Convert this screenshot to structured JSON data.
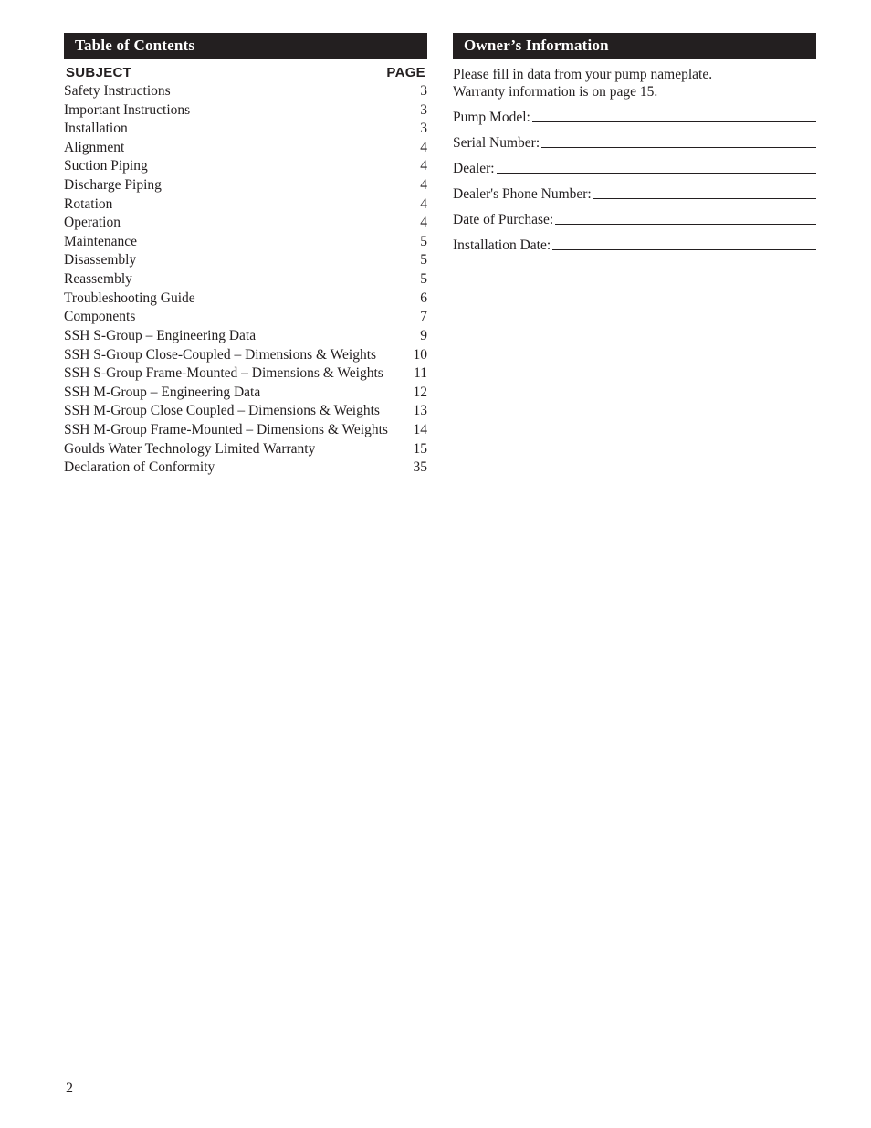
{
  "page_number": "2",
  "toc": {
    "title": "Table of Contents",
    "header_subject": "SUBJECT",
    "header_page": "PAGE",
    "entries": [
      {
        "subject": "Safety Instructions",
        "page": "3"
      },
      {
        "subject": "Important Instructions",
        "page": "3"
      },
      {
        "subject": "Installation",
        "page": "3"
      },
      {
        "subject": "Alignment",
        "page": "4"
      },
      {
        "subject": "Suction Piping",
        "page": "4"
      },
      {
        "subject": "Discharge Piping",
        "page": "4"
      },
      {
        "subject": "Rotation",
        "page": "4"
      },
      {
        "subject": "Operation",
        "page": "4"
      },
      {
        "subject": "Maintenance",
        "page": "5"
      },
      {
        "subject": "Disassembly",
        "page": "5"
      },
      {
        "subject": "Reassembly",
        "page": "5"
      },
      {
        "subject": "Troubleshooting Guide",
        "page": "6"
      },
      {
        "subject": "Components",
        "page": "7"
      },
      {
        "subject": "SSH S-Group – Engineering Data",
        "page": "9"
      },
      {
        "subject": "SSH S-Group Close-Coupled – Dimensions & Weights",
        "page": "10"
      },
      {
        "subject": "SSH S-Group Frame-Mounted – Dimensions & Weights",
        "page": "11"
      },
      {
        "subject": "SSH M-Group – Engineering Data",
        "page": "12"
      },
      {
        "subject": "SSH M-Group Close Coupled – Dimensions & Weights",
        "page": "13"
      },
      {
        "subject": "SSH M-Group Frame-Mounted – Dimensions & Weights",
        "page": "14"
      },
      {
        "subject": "Goulds Water Technology Limited Warranty",
        "page": "15"
      },
      {
        "subject": "Declaration of Conformity",
        "page": "35"
      }
    ]
  },
  "owner": {
    "title": "Owner’s Information",
    "intro_line1": "Please fill in data from your pump nameplate.",
    "intro_line2": "Warranty information is on page 15.",
    "fields": [
      {
        "label": "Pump Model:"
      },
      {
        "label": "Serial Number:"
      },
      {
        "label": "Dealer:"
      },
      {
        "label": "Dealer's Phone Number:"
      },
      {
        "label": "Date of Purchase:"
      },
      {
        "label": "Installation Date:"
      }
    ]
  }
}
